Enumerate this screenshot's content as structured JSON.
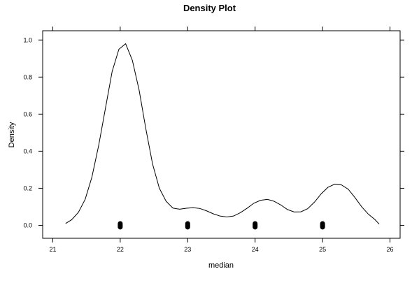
{
  "chart_data": {
    "type": "line",
    "title": "Density Plot",
    "xlabel": "median",
    "ylabel": "Density",
    "xlim": [
      20.85,
      26.15
    ],
    "ylim": [
      -0.07,
      1.05
    ],
    "x_ticks": [
      21,
      22,
      23,
      24,
      25,
      26
    ],
    "x_tick_labels": [
      "21",
      "22",
      "23",
      "24",
      "25",
      "26"
    ],
    "y_ticks": [
      0.0,
      0.2,
      0.4,
      0.6,
      0.8,
      1.0
    ],
    "y_tick_labels": [
      "0.0",
      "0.2",
      "0.4",
      "0.6",
      "0.8",
      "1.0"
    ],
    "grid": false,
    "series": [
      {
        "x": [
          21.19,
          21.28,
          21.38,
          21.48,
          21.58,
          21.68,
          21.78,
          21.88,
          21.98,
          22.08,
          22.18,
          22.28,
          22.38,
          22.48,
          22.58,
          22.68,
          22.78,
          22.88,
          22.98,
          23.08,
          23.18,
          23.28,
          23.38,
          23.48,
          23.58,
          23.68,
          23.78,
          23.88,
          23.98,
          24.08,
          24.18,
          24.28,
          24.38,
          24.48,
          24.58,
          24.68,
          24.78,
          24.88,
          24.98,
          25.08,
          25.18,
          25.28,
          25.38,
          25.48,
          25.58,
          25.68,
          25.78,
          25.84
        ],
        "y": [
          0.01,
          0.03,
          0.07,
          0.14,
          0.26,
          0.43,
          0.63,
          0.83,
          0.95,
          0.98,
          0.89,
          0.73,
          0.52,
          0.33,
          0.2,
          0.13,
          0.093,
          0.087,
          0.092,
          0.095,
          0.091,
          0.078,
          0.062,
          0.05,
          0.045,
          0.05,
          0.068,
          0.092,
          0.119,
          0.135,
          0.14,
          0.13,
          0.11,
          0.085,
          0.072,
          0.073,
          0.09,
          0.125,
          0.17,
          0.205,
          0.222,
          0.218,
          0.195,
          0.15,
          0.1,
          0.06,
          0.03,
          0.006
        ]
      }
    ],
    "rug": [
      22,
      23,
      24,
      25
    ]
  }
}
